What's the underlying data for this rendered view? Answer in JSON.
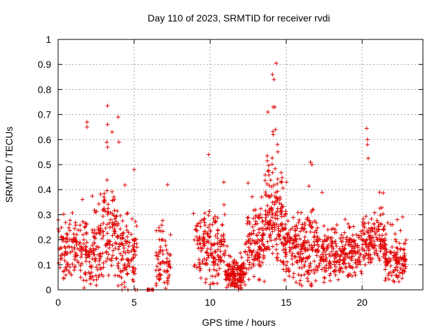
{
  "chart_data": {
    "type": "scatter",
    "title": "Day 110 of 2023, SRMTID for receiver rvdi",
    "xlabel": "GPS time / hours",
    "ylabel": "SRMTID / TECUs",
    "xlim": [
      0,
      24
    ],
    "ylim": [
      0,
      1
    ],
    "xticks": [
      0,
      5,
      10,
      15,
      20
    ],
    "yticks": [
      0,
      0.1,
      0.2,
      0.3,
      0.4,
      0.5,
      0.6,
      0.7,
      0.8,
      0.9,
      1
    ],
    "xtick_labels": [
      "0",
      "5",
      "10",
      "15",
      "20"
    ],
    "ytick_labels": [
      "0",
      "0.1",
      "0.2",
      "0.3",
      "0.4",
      "0.5",
      "0.6",
      "0.7",
      "0.8",
      "0.9",
      "1"
    ],
    "grid": true,
    "marker": "+",
    "color": "#e00000",
    "notable_points": [
      {
        "x": 1.9,
        "y": 0.67
      },
      {
        "x": 1.9,
        "y": 0.65
      },
      {
        "x": 3.25,
        "y": 0.735
      },
      {
        "x": 3.25,
        "y": 0.66
      },
      {
        "x": 3.55,
        "y": 0.63
      },
      {
        "x": 3.95,
        "y": 0.69
      },
      {
        "x": 3.2,
        "y": 0.59
      },
      {
        "x": 3.25,
        "y": 0.57
      },
      {
        "x": 4.0,
        "y": 0.59
      },
      {
        "x": 5.0,
        "y": 0.48
      },
      {
        "x": 7.2,
        "y": 0.42
      },
      {
        "x": 9.9,
        "y": 0.54
      },
      {
        "x": 10.9,
        "y": 0.43
      },
      {
        "x": 14.35,
        "y": 0.905
      },
      {
        "x": 14.1,
        "y": 0.86
      },
      {
        "x": 14.2,
        "y": 0.84
      },
      {
        "x": 14.15,
        "y": 0.73
      },
      {
        "x": 14.25,
        "y": 0.73
      },
      {
        "x": 13.8,
        "y": 0.71
      },
      {
        "x": 14.3,
        "y": 0.64
      },
      {
        "x": 14.15,
        "y": 0.62
      },
      {
        "x": 20.3,
        "y": 0.645
      },
      {
        "x": 20.35,
        "y": 0.6
      },
      {
        "x": 20.35,
        "y": 0.58
      },
      {
        "x": 20.4,
        "y": 0.525
      },
      {
        "x": 16.6,
        "y": 0.51
      },
      {
        "x": 16.7,
        "y": 0.5
      }
    ],
    "clusters": [
      {
        "x_from": 0.0,
        "x_to": 2.9,
        "n": 230,
        "center": 0.15,
        "spread": 0.09,
        "seed": 11
      },
      {
        "x_from": 2.9,
        "x_to": 3.9,
        "n": 90,
        "center": 0.24,
        "spread": 0.12,
        "seed": 12
      },
      {
        "x_from": 3.9,
        "x_to": 5.2,
        "n": 110,
        "center": 0.13,
        "spread": 0.1,
        "seed": 13
      },
      {
        "x_from": 5.8,
        "x_to": 6.3,
        "n": 14,
        "center": 0.0,
        "spread": 0.002,
        "seed": 14
      },
      {
        "x_from": 6.4,
        "x_to": 7.4,
        "n": 70,
        "center": 0.12,
        "spread": 0.09,
        "seed": 15
      },
      {
        "x_from": 8.9,
        "x_to": 11.0,
        "n": 170,
        "center": 0.17,
        "spread": 0.1,
        "seed": 16
      },
      {
        "x_from": 11.0,
        "x_to": 12.3,
        "n": 150,
        "center": 0.06,
        "spread": 0.05,
        "seed": 17
      },
      {
        "x_from": 12.3,
        "x_to": 13.6,
        "n": 130,
        "center": 0.18,
        "spread": 0.1,
        "seed": 18
      },
      {
        "x_from": 13.6,
        "x_to": 14.8,
        "n": 150,
        "center": 0.3,
        "spread": 0.14,
        "seed": 19
      },
      {
        "x_from": 14.8,
        "x_to": 17.0,
        "n": 220,
        "center": 0.17,
        "spread": 0.1,
        "seed": 20
      },
      {
        "x_from": 17.0,
        "x_to": 20.0,
        "n": 260,
        "center": 0.14,
        "spread": 0.08,
        "seed": 21
      },
      {
        "x_from": 20.0,
        "x_to": 21.5,
        "n": 140,
        "center": 0.2,
        "spread": 0.07,
        "seed": 22
      },
      {
        "x_from": 21.5,
        "x_to": 22.9,
        "n": 120,
        "center": 0.12,
        "spread": 0.07,
        "seed": 23
      }
    ]
  }
}
